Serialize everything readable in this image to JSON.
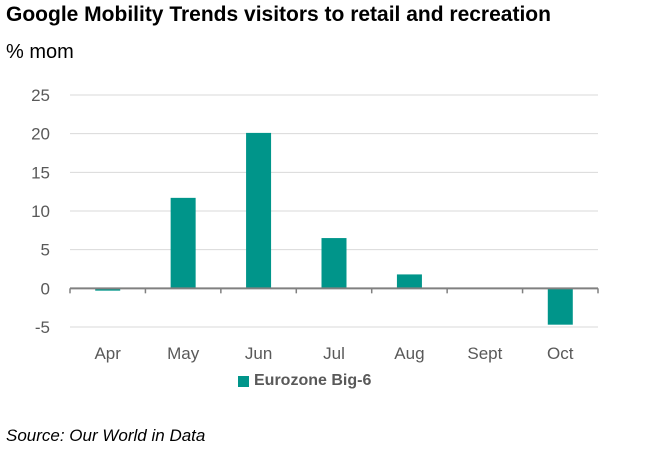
{
  "title": "Google Mobility Trends visitors to retail and recreation",
  "subtitle": "% mom",
  "source": "Source: Our World in Data",
  "colors": {
    "bar": "#00958a",
    "grid": "#d9d9d9",
    "axis": "#808080",
    "tick_text": "#595959"
  },
  "chart_data": {
    "type": "bar",
    "title": "Google Mobility Trends visitors to retail and recreation",
    "ylabel": "% mom",
    "xlabel": "",
    "categories": [
      "Apr",
      "May",
      "Jun",
      "Jul",
      "Aug",
      "Sept",
      "Oct"
    ],
    "series": [
      {
        "name": "Eurozone Big-6",
        "values": [
          -0.3,
          11.7,
          20.1,
          6.5,
          1.8,
          0.0,
          -4.7
        ]
      }
    ],
    "ylim": [
      -5,
      25
    ],
    "yticks": [
      25,
      20,
      15,
      10,
      5,
      0,
      -5
    ],
    "grid": true,
    "legend": "bottom-center"
  }
}
